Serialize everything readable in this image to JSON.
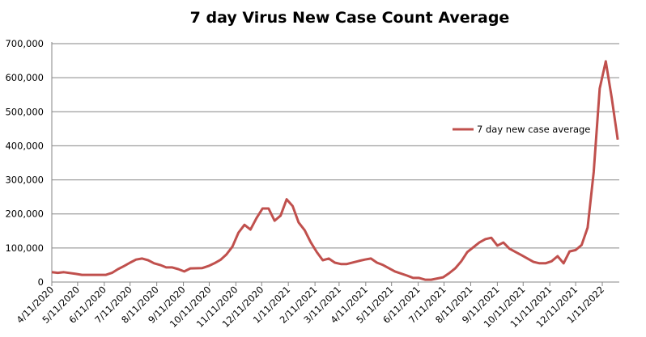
{
  "chart_data": {
    "type": "line",
    "title": "7 day Virus New Case Count Average",
    "xlabel": "",
    "ylabel": "",
    "ylim": [
      0,
      700000
    ],
    "xlim": [
      "2020-04-11",
      "2022-01-29"
    ],
    "grid": "horizontal",
    "legend": "right",
    "y_ticks": [
      "0",
      "100,000",
      "200,000",
      "300,000",
      "400,000",
      "500,000",
      "600,000",
      "700,000"
    ],
    "x_ticks": [
      "4/11/2020",
      "5/11/2020",
      "6/11/2020",
      "7/11/2020",
      "8/11/2020",
      "9/11/2020",
      "10/11/2020",
      "11/11/2020",
      "12/11/2020",
      "1/11/2021",
      "2/11/2021",
      "3/11/2021",
      "4/11/2021",
      "5/11/2021",
      "6/11/2021",
      "7/11/2021",
      "8/11/2021",
      "9/11/2021",
      "10/11/2021",
      "11/11/2021",
      "12/11/2021",
      "1/11/2022"
    ],
    "series": [
      {
        "name": "7 day new case average",
        "color": "#c0504d",
        "x": [
          "2020-04-11",
          "2020-04-18",
          "2020-04-25",
          "2020-05-09",
          "2020-05-16",
          "2020-06-13",
          "2020-06-20",
          "2020-06-27",
          "2020-07-04",
          "2020-07-11",
          "2020-07-18",
          "2020-07-25",
          "2020-08-01",
          "2020-08-08",
          "2020-08-15",
          "2020-08-22",
          "2020-08-29",
          "2020-09-05",
          "2020-09-12",
          "2020-09-19",
          "2020-10-03",
          "2020-10-10",
          "2020-10-17",
          "2020-10-24",
          "2020-10-31",
          "2020-11-07",
          "2020-11-14",
          "2020-11-21",
          "2020-11-28",
          "2020-12-05",
          "2020-12-12",
          "2020-12-19",
          "2020-12-26",
          "2021-01-02",
          "2021-01-09",
          "2021-01-16",
          "2021-01-23",
          "2021-01-30",
          "2021-02-06",
          "2021-02-13",
          "2021-02-20",
          "2021-02-27",
          "2021-03-06",
          "2021-03-13",
          "2021-03-20",
          "2021-04-03",
          "2021-04-10",
          "2021-04-17",
          "2021-04-24",
          "2021-05-01",
          "2021-05-15",
          "2021-05-29",
          "2021-06-05",
          "2021-06-12",
          "2021-06-19",
          "2021-06-26",
          "2021-07-10",
          "2021-07-17",
          "2021-07-24",
          "2021-07-31",
          "2021-08-07",
          "2021-08-21",
          "2021-08-28",
          "2021-09-04",
          "2021-09-11",
          "2021-09-18",
          "2021-09-25",
          "2021-10-09",
          "2021-10-23",
          "2021-10-30",
          "2021-11-06",
          "2021-11-13",
          "2021-11-20",
          "2021-11-27",
          "2021-12-04",
          "2021-12-11",
          "2021-12-18",
          "2021-12-25",
          "2022-01-01",
          "2022-01-08",
          "2022-01-15",
          "2022-01-22",
          "2022-01-29"
        ],
        "values": [
          29000,
          27000,
          29000,
          24000,
          21000,
          21000,
          27000,
          38000,
          47000,
          57000,
          66000,
          69000,
          64000,
          55000,
          50000,
          43000,
          43000,
          38000,
          31000,
          40000,
          41000,
          47000,
          55000,
          65000,
          81000,
          104000,
          145000,
          168000,
          154000,
          188000,
          216000,
          216000,
          180000,
          195000,
          243000,
          223000,
          175000,
          152000,
          117000,
          88000,
          64000,
          69000,
          57000,
          53000,
          53000,
          62000,
          66000,
          69000,
          57000,
          50000,
          31000,
          19000,
          12000,
          12000,
          7000,
          7000,
          14000,
          26000,
          40000,
          61000,
          88000,
          116000,
          126000,
          130000,
          107000,
          116000,
          98000,
          79000,
          59000,
          55000,
          55000,
          61000,
          76000,
          55000,
          90000,
          94000,
          109000,
          160000,
          323000,
          568000,
          648000,
          540000,
          418000
        ]
      }
    ]
  }
}
